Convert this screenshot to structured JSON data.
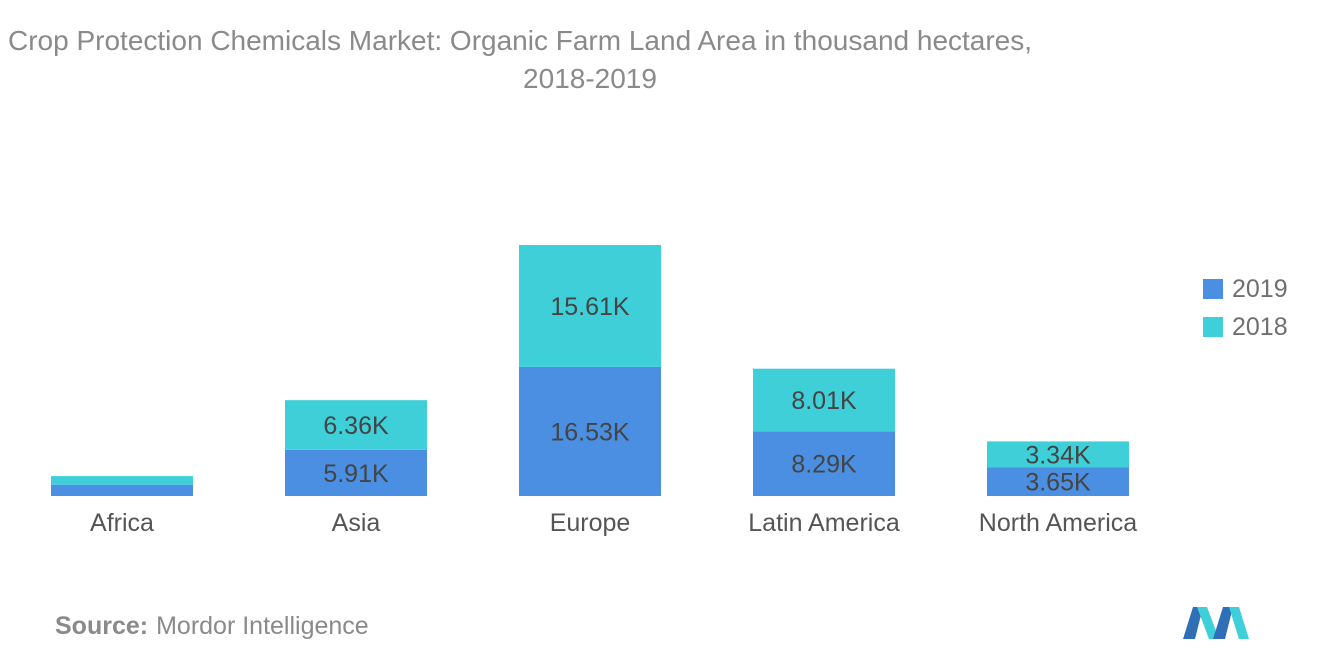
{
  "title_line1": "Crop Protection Chemicals Market: Organic Farm Land Area in thousand hectares,",
  "title_line2": "2018-2019",
  "source_label": "Source:",
  "source_text": "Mordor Intelligence",
  "colors": {
    "2019": "#4a8fe2",
    "2018": "#3ecfd9"
  },
  "chart_data": {
    "type": "bar",
    "stacked": true,
    "title": "Crop Protection Chemicals Market: Organic Farm Land Area in thousand hectares, 2018-2019",
    "categories": [
      "Africa",
      "Asia",
      "Europe",
      "Latin America",
      "North America"
    ],
    "series": [
      {
        "name": "2019",
        "values": [
          1.45,
          5.91,
          16.53,
          8.29,
          3.65
        ],
        "labels": [
          "",
          "5.91K",
          "16.53K",
          "8.29K",
          "3.65K"
        ]
      },
      {
        "name": "2018",
        "values": [
          1.1,
          6.36,
          15.61,
          8.01,
          3.34
        ],
        "labels": [
          "",
          "6.36K",
          "15.61K",
          "8.01K",
          "3.34K"
        ]
      }
    ],
    "ylim": [
      0,
      33
    ],
    "legend_position": "right",
    "grid": false
  }
}
